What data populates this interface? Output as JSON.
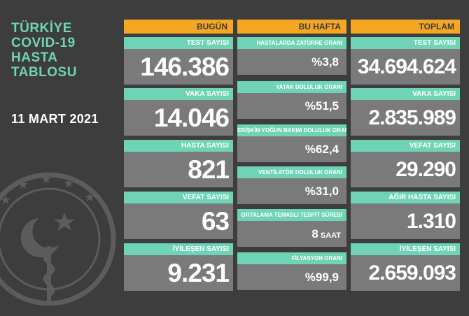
{
  "header": {
    "title": "TÜRKİYE\nCOVID-19\nHASTA\nTABLOSU",
    "date": "11 MART 2021"
  },
  "columns": {
    "today": {
      "heading": "BUGÜN",
      "items": [
        {
          "label": "TEST SAYISI",
          "value": "146.386"
        },
        {
          "label": "VAKA SAYISI",
          "value": "14.046"
        },
        {
          "label": "HASTA SAYISI",
          "value": "821"
        },
        {
          "label": "VEFAT SAYISI",
          "value": "63"
        },
        {
          "label": "İYİLEŞEN SAYISI",
          "value": "9.231"
        }
      ]
    },
    "week": {
      "heading": "BU HAFTA",
      "items": [
        {
          "label": "HASTALARDA ZATÜRRE ORANI",
          "value": "%3,8",
          "unit": ""
        },
        {
          "label": "YATAK DOLULUK ORANI",
          "value": "%51,5",
          "unit": ""
        },
        {
          "label": "ERİŞKİN YOĞUN BAKIM DOLULUK ORANI",
          "value": "%62,4",
          "unit": ""
        },
        {
          "label": "VENTİLATÖR DOLULUK ORANI",
          "value": "%31,0",
          "unit": ""
        },
        {
          "label": "ORTALAMA TEMASLI TESPİT SÜRESİ",
          "value": "8",
          "unit": "SAAT"
        },
        {
          "label": "FİLYASYON ORANI",
          "value": "%99,9",
          "unit": ""
        }
      ]
    },
    "total": {
      "heading": "TOPLAM",
      "items": [
        {
          "label": "TEST SAYISI",
          "value": "34.694.624"
        },
        {
          "label": "VAKA SAYISI",
          "value": "2.835.989"
        },
        {
          "label": "VEFAT SAYISI",
          "value": "29.290"
        },
        {
          "label": "AĞIR HASTA SAYISI",
          "value": "1.310"
        },
        {
          "label": "İYİLEŞEN SAYISI",
          "value": "2.659.093"
        }
      ]
    }
  },
  "colors": {
    "background": "#3d3d3d",
    "header_orange": "#f5a623",
    "label_teal": "#6fd4b6",
    "value_gray": "#7a7a7a"
  },
  "icons": [
    "ministry-of-health-emblem-icon"
  ]
}
